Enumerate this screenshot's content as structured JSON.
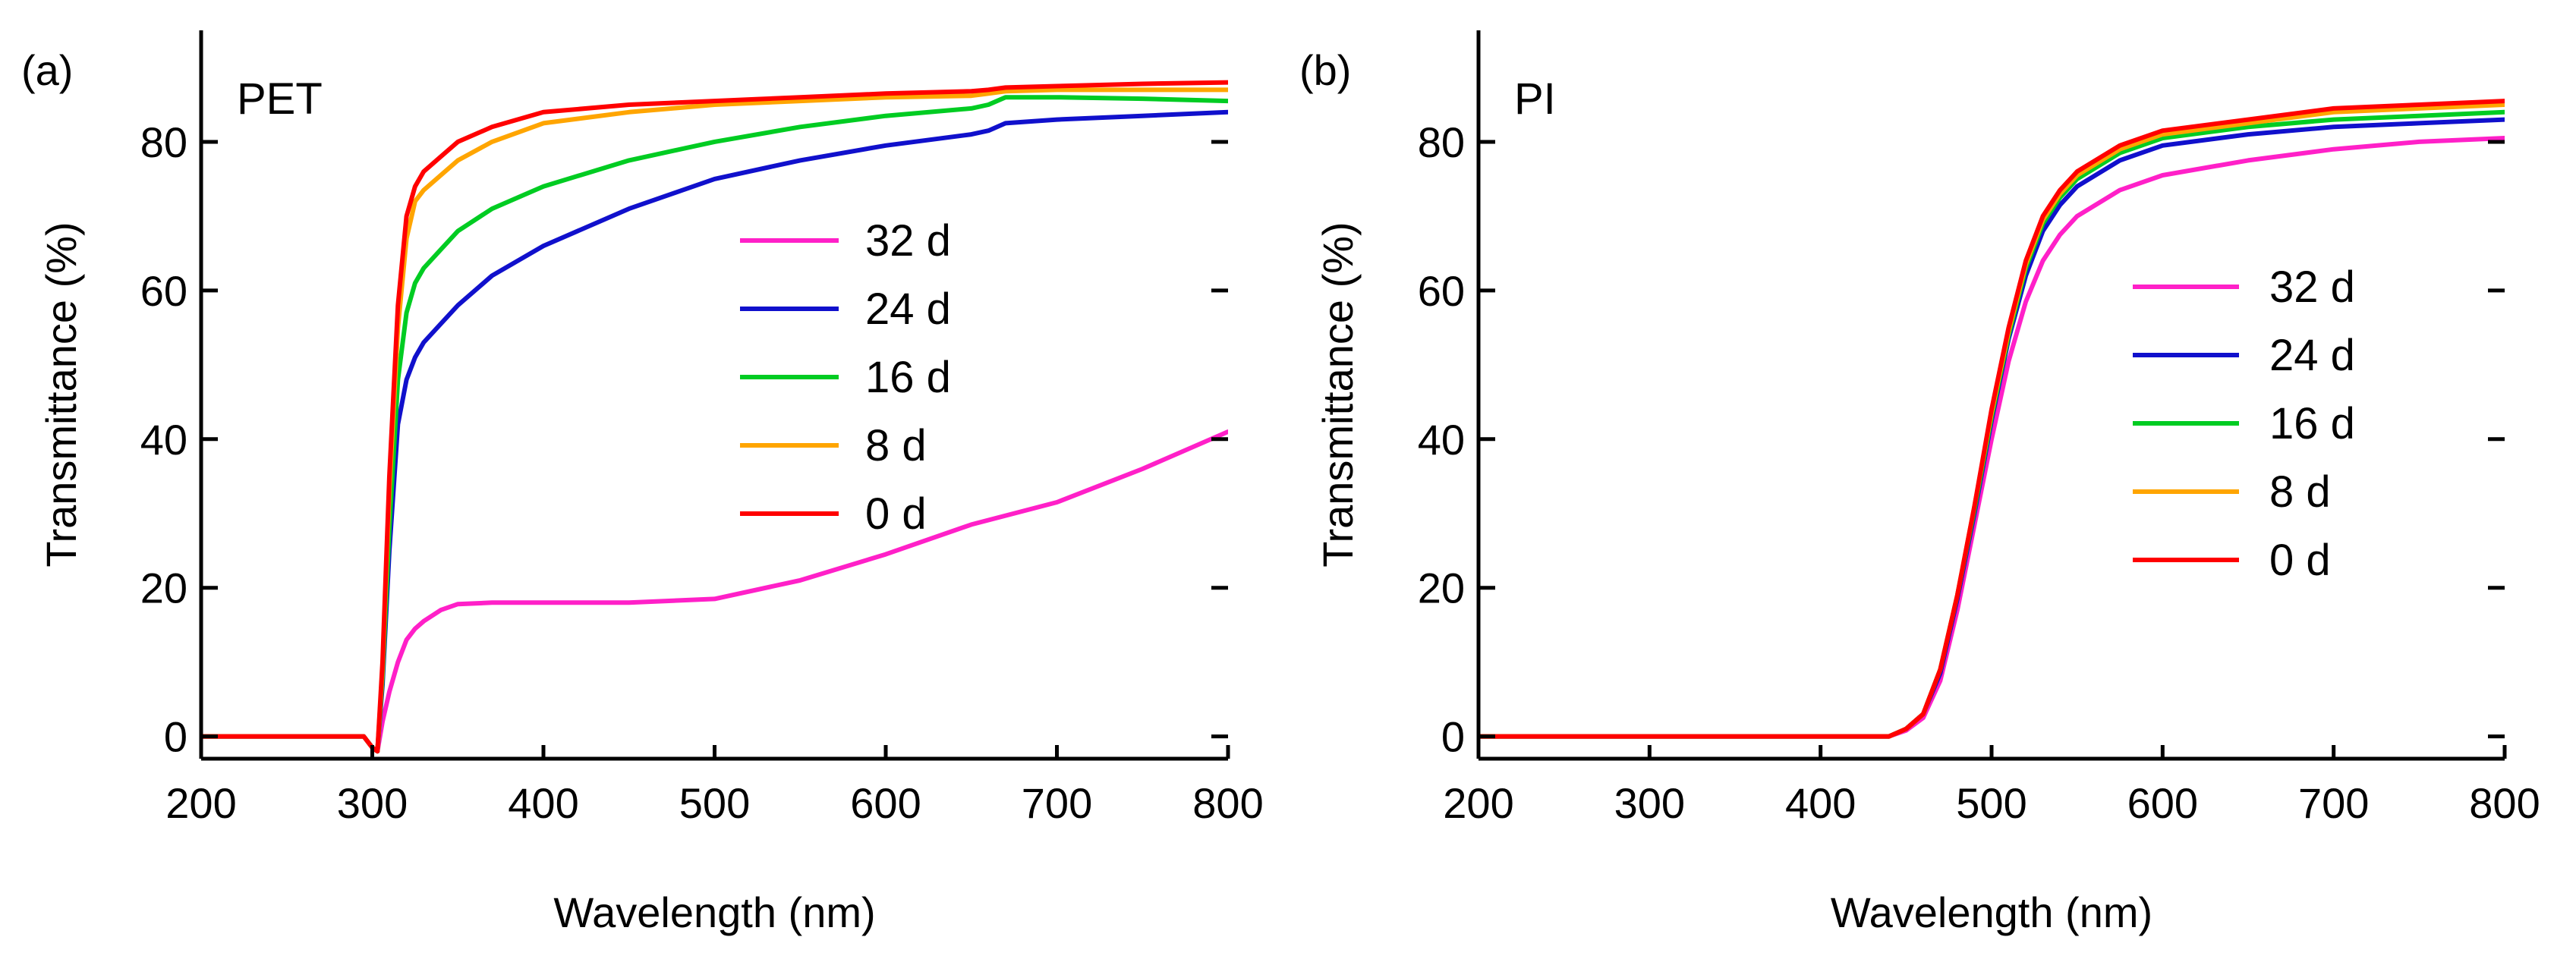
{
  "chart_data": [
    {
      "type": "line",
      "panel_label": "(a)",
      "title": "PET",
      "xlabel": "Wavelength (nm)",
      "ylabel": "Transmittance (%)",
      "xlim": [
        200,
        800
      ],
      "ylim": [
        -3,
        95
      ],
      "xticks": [
        200,
        300,
        400,
        500,
        600,
        700,
        800
      ],
      "yticks": [
        0,
        20,
        40,
        60,
        80
      ],
      "legend": [
        "32 d",
        "24 d",
        "16 d",
        "8 d",
        "0 d"
      ],
      "series": [
        {
          "name": "0 d",
          "color": "#ff0000",
          "x": [
            200,
            295,
            300,
            303,
            306,
            310,
            315,
            320,
            325,
            330,
            340,
            350,
            370,
            400,
            450,
            500,
            550,
            600,
            650,
            660,
            670,
            700,
            750,
            800
          ],
          "y": [
            0,
            0,
            -1.5,
            -2,
            10,
            35,
            58,
            70,
            74,
            76,
            78,
            80,
            82,
            84,
            85,
            85.5,
            86,
            86.5,
            86.8,
            87,
            87.3,
            87.5,
            87.8,
            88
          ]
        },
        {
          "name": "8 d",
          "color": "#ffa500",
          "x": [
            200,
            295,
            300,
            303,
            306,
            310,
            315,
            320,
            325,
            330,
            340,
            350,
            370,
            400,
            450,
            500,
            550,
            600,
            650,
            660,
            670,
            700,
            750,
            800
          ],
          "y": [
            0,
            0,
            -1.5,
            -2,
            9,
            33,
            55,
            67,
            72,
            73.5,
            75.5,
            77.5,
            80,
            82.5,
            84,
            85,
            85.5,
            86,
            86.2,
            86.5,
            86.8,
            87,
            87,
            87
          ]
        },
        {
          "name": "16 d",
          "color": "#00cc22",
          "x": [
            200,
            295,
            300,
            303,
            306,
            310,
            315,
            320,
            325,
            330,
            340,
            350,
            370,
            400,
            450,
            500,
            550,
            600,
            650,
            660,
            670,
            700,
            750,
            800
          ],
          "y": [
            0,
            0,
            -1.5,
            -2,
            8,
            28,
            48,
            57,
            61,
            63,
            65.5,
            68,
            71,
            74,
            77.5,
            80,
            82,
            83.5,
            84.5,
            85,
            86,
            86,
            85.8,
            85.5
          ]
        },
        {
          "name": "24 d",
          "color": "#1010cc",
          "x": [
            200,
            295,
            300,
            303,
            306,
            310,
            315,
            320,
            325,
            330,
            340,
            350,
            370,
            400,
            450,
            500,
            550,
            600,
            650,
            660,
            670,
            700,
            750,
            800
          ],
          "y": [
            0,
            0,
            -1.5,
            -2,
            7,
            25,
            42,
            48,
            51,
            53,
            55.5,
            58,
            62,
            66,
            71,
            75,
            77.5,
            79.5,
            81,
            81.5,
            82.5,
            83,
            83.5,
            84
          ]
        },
        {
          "name": "32 d",
          "color": "#ff20c8",
          "x": [
            200,
            295,
            300,
            303,
            306,
            310,
            315,
            320,
            325,
            330,
            340,
            350,
            370,
            400,
            450,
            500,
            550,
            600,
            650,
            700,
            750,
            800
          ],
          "y": [
            0,
            0,
            -1.5,
            -2,
            2,
            6,
            10,
            13,
            14.5,
            15.5,
            17,
            17.8,
            18,
            18,
            18,
            18.5,
            21,
            24.5,
            28.5,
            31.5,
            36,
            41
          ]
        }
      ]
    },
    {
      "type": "line",
      "panel_label": "(b)",
      "title": "PI",
      "xlabel": "Wavelength (nm)",
      "ylabel": "Transmittance (%)",
      "xlim": [
        200,
        800
      ],
      "ylim": [
        -3,
        95
      ],
      "xticks": [
        200,
        300,
        400,
        500,
        600,
        700,
        800
      ],
      "yticks": [
        0,
        20,
        40,
        60,
        80
      ],
      "legend": [
        "32 d",
        "24 d",
        "16 d",
        "8 d",
        "0 d"
      ],
      "series": [
        {
          "name": "0 d",
          "color": "#ff0000",
          "x": [
            200,
            440,
            450,
            460,
            470,
            480,
            490,
            500,
            510,
            520,
            530,
            540,
            550,
            575,
            600,
            650,
            700,
            750,
            800
          ],
          "y": [
            0,
            0,
            1,
            3,
            9,
            19,
            31,
            44,
            55,
            64,
            70,
            73.5,
            76,
            79.5,
            81.5,
            83,
            84.5,
            85,
            85.5
          ]
        },
        {
          "name": "8 d",
          "color": "#ffa500",
          "x": [
            200,
            440,
            450,
            460,
            470,
            480,
            490,
            500,
            510,
            520,
            530,
            540,
            550,
            575,
            600,
            650,
            700,
            750,
            800
          ],
          "y": [
            0,
            0,
            1,
            3,
            9,
            19,
            31,
            43.5,
            54.5,
            63.5,
            69.5,
            73,
            75.5,
            79,
            81,
            82.5,
            84,
            84.5,
            85
          ]
        },
        {
          "name": "16 d",
          "color": "#00cc22",
          "x": [
            200,
            440,
            450,
            460,
            470,
            480,
            490,
            500,
            510,
            520,
            530,
            540,
            550,
            575,
            600,
            650,
            700,
            750,
            800
          ],
          "y": [
            0,
            0,
            1,
            3,
            9,
            19,
            30.5,
            43,
            54,
            63,
            69,
            72.5,
            75,
            78.5,
            80.5,
            82,
            83,
            83.5,
            84
          ]
        },
        {
          "name": "24 d",
          "color": "#1010cc",
          "x": [
            200,
            440,
            450,
            460,
            470,
            480,
            490,
            500,
            510,
            520,
            530,
            540,
            550,
            575,
            600,
            650,
            700,
            750,
            800
          ],
          "y": [
            0,
            0,
            1,
            3,
            8.5,
            18.5,
            30,
            42.5,
            53.5,
            62,
            68,
            71.5,
            74,
            77.5,
            79.5,
            81,
            82,
            82.5,
            83
          ]
        },
        {
          "name": "32 d",
          "color": "#ff20c8",
          "x": [
            200,
            440,
            450,
            460,
            470,
            480,
            490,
            500,
            510,
            520,
            530,
            540,
            550,
            575,
            600,
            650,
            700,
            750,
            800
          ],
          "y": [
            0,
            0,
            0.8,
            2.5,
            7.5,
            17,
            28.5,
            40,
            50.5,
            58.5,
            64,
            67.5,
            70,
            73.5,
            75.5,
            77.5,
            79,
            80,
            80.5
          ]
        }
      ]
    }
  ]
}
